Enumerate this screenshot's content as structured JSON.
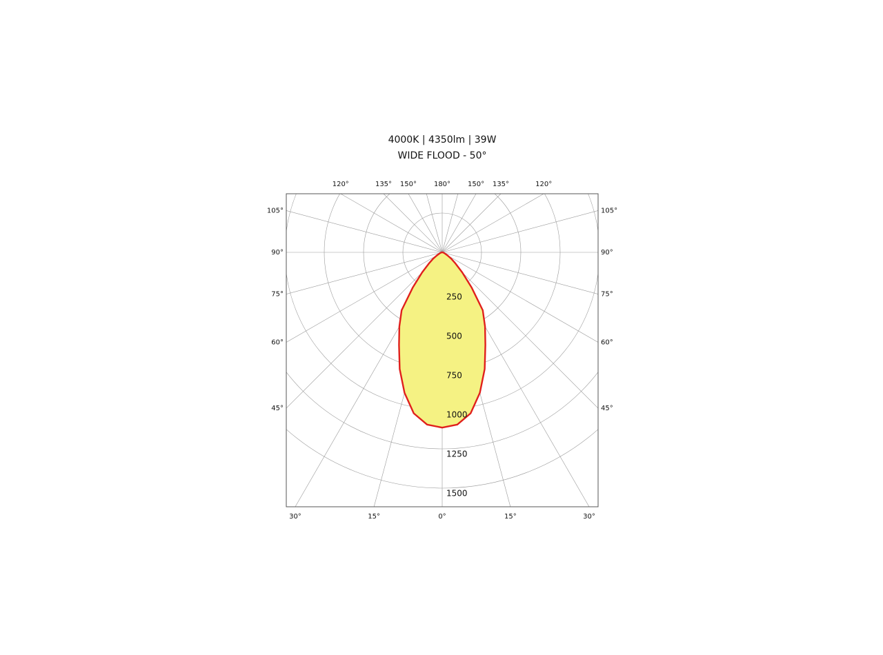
{
  "chart_data": {
    "type": "polar",
    "title": "4000K | 4350lm | 39W",
    "subtitle": "WIDE FLOOD - 50°",
    "rlim": [
      0,
      1500
    ],
    "rticks": [
      250,
      500,
      750,
      1000,
      1250,
      1500
    ],
    "thetaticks": [
      {
        "value": -180,
        "label": "180°"
      },
      {
        "value": -165,
        "label": null
      },
      {
        "value": -150,
        "label": "150°"
      },
      {
        "value": -135,
        "label": "135°"
      },
      {
        "value": -120,
        "label": "120°"
      },
      {
        "value": -105,
        "label": "105°"
      },
      {
        "value": -90,
        "label": "90°"
      },
      {
        "value": -75,
        "label": "75°"
      },
      {
        "value": -60,
        "label": "60°"
      },
      {
        "value": -45,
        "label": "45°"
      },
      {
        "value": -30,
        "label": "30°"
      },
      {
        "value": -15,
        "label": "15°"
      },
      {
        "value": 0,
        "label": "0°"
      },
      {
        "value": 15,
        "label": "15°"
      },
      {
        "value": 30,
        "label": "30°"
      },
      {
        "value": 45,
        "label": "45°"
      },
      {
        "value": 60,
        "label": "60°"
      },
      {
        "value": 75,
        "label": "75°"
      },
      {
        "value": 90,
        "label": "90°"
      },
      {
        "value": 105,
        "label": "105°"
      },
      {
        "value": 120,
        "label": "120°"
      },
      {
        "value": 135,
        "label": "135°"
      },
      {
        "value": 150,
        "label": "150°"
      },
      {
        "value": 165,
        "label": null
      }
    ],
    "grid": true,
    "series": [
      {
        "fill": "#f5f283",
        "color": "#e0201c",
        "angles": [
          -90,
          -80,
          -70,
          -60,
          -55,
          -50,
          -45,
          -40,
          -35,
          -30,
          -25,
          -20,
          -15,
          -10,
          -5,
          0,
          5,
          10,
          15,
          20,
          25,
          30,
          35,
          40,
          45,
          50,
          55,
          60,
          70,
          80,
          90
        ],
        "values": [
          0,
          5,
          15,
          40,
          70,
          110,
          180,
          290,
          450,
          545,
          650,
          790,
          925,
          1040,
          1100,
          1115,
          1100,
          1040,
          925,
          790,
          650,
          545,
          450,
          290,
          180,
          110,
          70,
          40,
          15,
          5,
          0
        ]
      }
    ]
  }
}
